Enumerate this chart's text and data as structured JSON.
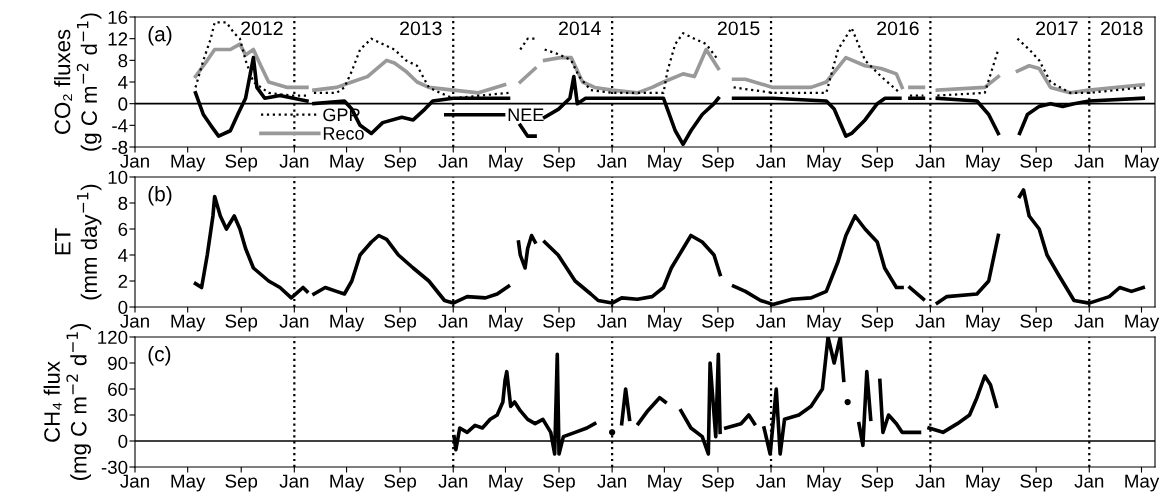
{
  "chart_data": [
    {
      "type": "line",
      "ylabel": "CO₂ fluxes\n(g C m$^{−2}$ d$^{−1}$)",
      "annotations": [
        "(a)",
        "2012",
        "2013",
        "2014",
        "2015",
        "2016",
        "2017",
        "2018"
      ],
      "xlim": [
        "2012-01-01",
        "2018-06-01"
      ],
      "xticks": [
        {
          "value": "2012-01",
          "label": "Jan"
        },
        {
          "value": "2012-05",
          "label": "May"
        },
        {
          "value": "2012-09",
          "label": "Sep"
        },
        {
          "value": "2013-01",
          "label": "Jan"
        },
        {
          "value": "2013-05",
          "label": "May"
        },
        {
          "value": "2013-09",
          "label": "Sep"
        },
        {
          "value": "2014-01",
          "label": "Jan"
        },
        {
          "value": "2014-05",
          "label": "May"
        },
        {
          "value": "2014-09",
          "label": "Sep"
        },
        {
          "value": "2015-01",
          "label": "Jan"
        },
        {
          "value": "2015-05",
          "label": "May"
        },
        {
          "value": "2015-09",
          "label": "Sep"
        },
        {
          "value": "2016-01",
          "label": "Jan"
        },
        {
          "value": "2016-05",
          "label": "May"
        },
        {
          "value": "2016-09",
          "label": "Sep"
        },
        {
          "value": "2017-01",
          "label": "Jan"
        },
        {
          "value": "2017-05",
          "label": "May"
        },
        {
          "value": "2017-09",
          "label": "Sep"
        },
        {
          "value": "2018-01",
          "label": "Jan"
        },
        {
          "value": "2018-05",
          "label": "May"
        }
      ],
      "ylim": [
        -8,
        16
      ],
      "yticks": [
        -8,
        -4,
        0,
        4,
        8,
        12,
        16
      ],
      "grid": false,
      "legend": "bottom left",
      "ref_lines": [
        {
          "axis": "x",
          "value": "2013-01-01",
          "color": "#000000",
          "line_style": "dotted"
        },
        {
          "axis": "x",
          "value": "2014-01-01",
          "color": "#000000",
          "line_style": "dotted"
        },
        {
          "axis": "x",
          "value": "2015-01-01",
          "color": "#000000",
          "line_style": "dotted"
        },
        {
          "axis": "x",
          "value": "2016-01-01",
          "color": "#000000",
          "line_style": "dotted"
        },
        {
          "axis": "x",
          "value": "2017-01-01",
          "color": "#000000",
          "line_style": "dotted"
        },
        {
          "axis": "x",
          "value": "2018-01-01",
          "color": "#000000",
          "line_style": "dotted"
        },
        {
          "axis": "y",
          "value": 0,
          "color": "#000000",
          "line_style": "solid"
        }
      ],
      "series": [
        {
          "name": "GPP",
          "color": "#000000",
          "line_style": "dotted",
          "x": [
            "2012-05-19",
            "2012-06-06",
            "2012-06-23",
            "2012-07-02",
            "2012-07-29",
            "2012-08-16",
            "2012-08-29",
            "2012-09-11",
            "2012-09-29",
            "2012-11-03",
            "2012-12-25",
            "2013-01-30",
            "2013-02-07",
            "2013-02-15",
            "2013-04-08",
            "2013-04-26",
            "2013-05-13",
            "2013-06-01",
            "2013-06-27",
            "2013-07-23",
            "2013-08-19",
            "2013-09-14",
            "2013-10-10",
            "2013-11-06",
            "2013-12-02",
            "2014-01-01",
            "2014-05-08",
            "2014-05-20",
            "2014-06-04",
            "2014-06-21",
            "2014-07-08",
            "2014-07-18",
            "2014-07-30",
            "2014-09-04",
            "2014-09-29",
            "2014-10-17",
            "2014-11-13",
            "2015-01-01",
            "2015-04-29",
            "2015-05-08",
            "2015-05-26",
            "2015-06-13",
            "2015-07-09",
            "2015-08-05",
            "2015-09-02",
            "2015-09-20",
            "2015-10-07",
            "2016-01-05",
            "2016-05-07",
            "2016-06-03",
            "2016-07-04",
            "2016-08-04",
            "2016-09-10",
            "2016-10-23",
            "2016-11-05",
            "2016-11-15",
            "2016-12-16",
            "2017-01-01",
            "2017-01-17",
            "2017-05-06",
            "2017-06-06",
            "2017-06-25",
            "2017-07-20",
            "2017-08-16",
            "2017-09-08",
            "2017-10-04",
            "2017-11-18",
            "2018-01-01",
            "2018-05-05"
          ],
          "values": [
            3,
            8,
            12,
            15,
            15,
            13,
            12,
            8,
            4,
            2,
            1.5,
            1.5,
            null,
            2,
            2,
            3,
            6,
            10,
            12,
            11,
            10,
            8,
            7,
            3,
            2,
            1,
            2,
            null,
            10,
            12,
            12,
            null,
            10,
            9,
            8,
            5,
            2.5,
            2,
            2,
            6,
            11,
            13,
            12,
            11,
            8,
            null,
            3,
            2,
            2,
            10,
            14,
            8,
            5,
            2,
            null,
            1.5,
            1.5,
            null,
            1.5,
            2,
            10,
            null,
            12,
            10,
            8,
            4,
            2,
            2,
            3
          ]
        },
        {
          "name": "Reco",
          "color": "#999999",
          "line_style": "solid",
          "x": [
            "2012-05-19",
            "2012-06-15",
            "2012-07-02",
            "2012-08-07",
            "2012-08-29",
            "2012-09-11",
            "2012-09-29",
            "2012-10-16",
            "2012-11-03",
            "2012-12-16",
            "2013-01-30",
            "2013-02-07",
            "2013-02-15",
            "2013-04-08",
            "2013-05-13",
            "2013-06-18",
            "2013-08-01",
            "2013-08-19",
            "2013-09-14",
            "2013-10-10",
            "2013-11-06",
            "2014-01-01",
            "2014-02-28",
            "2014-04-29",
            "2014-05-20",
            "2014-06-04",
            "2014-07-08",
            "2014-07-18",
            "2014-07-30",
            "2014-09-04",
            "2014-09-29",
            "2014-10-25",
            "2014-11-22",
            "2015-01-01",
            "2015-02-28",
            "2015-04-03",
            "2015-04-29",
            "2015-06-13",
            "2015-07-09",
            "2015-08-05",
            "2015-09-02",
            "2015-09-20",
            "2015-10-07",
            "2015-11-03",
            "2016-01-05",
            "2016-04-02",
            "2016-05-07",
            "2016-06-21",
            "2016-08-04",
            "2016-09-10",
            "2016-10-15",
            "2016-10-28",
            "2016-11-05",
            "2016-11-15",
            "2016-12-16",
            "2017-01-01",
            "2017-01-17",
            "2017-05-06",
            "2017-06-06",
            "2017-06-25",
            "2017-07-20",
            "2017-08-16",
            "2017-09-08",
            "2017-10-04",
            "2017-11-18",
            "2018-01-01",
            "2018-05-05"
          ],
          "values": [
            5,
            8,
            10,
            10,
            11,
            9,
            10,
            7,
            4,
            3,
            3,
            null,
            2.5,
            3,
            4,
            5,
            8,
            7.5,
            6,
            4,
            3,
            2.5,
            2,
            3.5,
            null,
            4,
            6.5,
            null,
            8,
            8.5,
            8.5,
            4,
            3,
            2.5,
            2,
            3,
            4,
            5.5,
            5,
            10,
            6.5,
            null,
            4.5,
            4.5,
            3,
            3,
            4,
            8.5,
            7,
            6.5,
            5.5,
            3,
            null,
            3,
            3,
            null,
            2.5,
            3,
            5,
            null,
            6,
            7,
            6.5,
            3,
            2,
            2.5,
            3.5
          ]
        },
        {
          "name": "NEE",
          "color": "#000000",
          "line_style": "solid",
          "x": [
            "2012-05-19",
            "2012-06-06",
            "2012-06-23",
            "2012-07-11",
            "2012-08-07",
            "2012-08-24",
            "2012-09-11",
            "2012-09-29",
            "2012-10-07",
            "2012-10-25",
            "2012-11-29",
            "2013-01-30",
            "2013-02-07",
            "2013-02-15",
            "2013-04-26",
            "2013-05-13",
            "2013-06-01",
            "2013-06-27",
            "2013-07-23",
            "2013-09-05",
            "2013-10-01",
            "2013-10-28",
            "2013-11-15",
            "2014-01-01",
            "2014-05-08",
            "2014-05-20",
            "2014-06-04",
            "2014-06-21",
            "2014-07-08",
            "2014-07-18",
            "2014-07-30",
            "2014-08-31",
            "2014-09-26",
            "2014-10-05",
            "2014-10-13",
            "2014-11-01",
            "2015-01-01",
            "2015-04-29",
            "2015-05-08",
            "2015-05-26",
            "2015-06-13",
            "2015-07-01",
            "2015-07-27",
            "2015-08-23",
            "2015-09-02",
            "2015-09-20",
            "2015-10-07",
            "2016-01-05",
            "2016-05-07",
            "2016-05-25",
            "2016-06-21",
            "2016-07-04",
            "2016-08-04",
            "2016-09-01",
            "2016-09-19",
            "2016-10-23",
            "2016-11-05",
            "2016-11-15",
            "2016-12-16",
            "2017-01-01",
            "2017-01-17",
            "2017-04-18",
            "2017-05-15",
            "2017-06-06",
            "2017-06-25",
            "2017-07-25",
            "2017-08-12",
            "2017-09-08",
            "2017-10-04",
            "2017-11-01",
            "2017-11-27",
            "2018-01-01",
            "2018-05-05"
          ],
          "values": [
            2,
            -2,
            -4,
            -6,
            -5,
            -2,
            1,
            8.5,
            3,
            1,
            1.5,
            0.5,
            null,
            0,
            0.5,
            -1,
            -4,
            -5.5,
            -3.5,
            -2.5,
            -3,
            -1,
            0.5,
            1,
            1,
            null,
            -4,
            -6,
            -6,
            null,
            -2.5,
            -1,
            1,
            5,
            0,
            1,
            1,
            1,
            -1,
            -5,
            -7.5,
            -5,
            -2,
            0,
            1,
            null,
            1,
            1,
            0.5,
            -1,
            -6,
            -5.5,
            -3,
            0,
            1,
            1,
            null,
            1,
            1,
            null,
            1,
            0.5,
            -2,
            -5.5,
            null,
            -5.5,
            -2,
            -0.5,
            0,
            -0.5,
            0,
            0.5,
            1
          ]
        }
      ]
    },
    {
      "type": "line",
      "ylabel": "ET\n(mm day$^{−1}$)",
      "annotations": [
        "(b)"
      ],
      "xlim": [
        "2012-01-01",
        "2018-06-01"
      ],
      "xticks": [
        {
          "value": "2012-01",
          "label": "Jan"
        },
        {
          "value": "2012-05",
          "label": "May"
        },
        {
          "value": "2012-09",
          "label": "Sep"
        },
        {
          "value": "2013-01",
          "label": "Jan"
        },
        {
          "value": "2013-05",
          "label": "May"
        },
        {
          "value": "2013-09",
          "label": "Sep"
        },
        {
          "value": "2014-01",
          "label": "Jan"
        },
        {
          "value": "2014-05",
          "label": "May"
        },
        {
          "value": "2014-09",
          "label": "Sep"
        },
        {
          "value": "2015-01",
          "label": "Jan"
        },
        {
          "value": "2015-05",
          "label": "May"
        },
        {
          "value": "2015-09",
          "label": "Sep"
        },
        {
          "value": "2016-01",
          "label": "Jan"
        },
        {
          "value": "2016-05",
          "label": "May"
        },
        {
          "value": "2016-09",
          "label": "Sep"
        },
        {
          "value": "2017-01",
          "label": "Jan"
        },
        {
          "value": "2017-05",
          "label": "May"
        },
        {
          "value": "2017-09",
          "label": "Sep"
        },
        {
          "value": "2018-01",
          "label": "Jan"
        },
        {
          "value": "2018-05",
          "label": "May"
        }
      ],
      "ylim": [
        0,
        10
      ],
      "yticks": [
        0,
        2,
        4,
        6,
        8,
        10
      ],
      "grid": false,
      "ref_lines": [
        {
          "axis": "x",
          "value": "2013-01-01",
          "color": "#000000",
          "line_style": "dotted"
        },
        {
          "axis": "x",
          "value": "2014-01-01",
          "color": "#000000",
          "line_style": "dotted"
        },
        {
          "axis": "x",
          "value": "2015-01-01",
          "color": "#000000",
          "line_style": "dotted"
        },
        {
          "axis": "x",
          "value": "2016-01-01",
          "color": "#000000",
          "line_style": "dotted"
        },
        {
          "axis": "x",
          "value": "2017-01-01",
          "color": "#000000",
          "line_style": "dotted"
        },
        {
          "axis": "x",
          "value": "2018-01-01",
          "color": "#000000",
          "line_style": "dotted"
        }
      ],
      "series": [
        {
          "color": "#000000",
          "line_style": "solid",
          "x": [
            "2012-05-19",
            "2012-06-02",
            "2012-06-15",
            "2012-06-28",
            "2012-07-02",
            "2012-07-15",
            "2012-07-29",
            "2012-08-16",
            "2012-08-29",
            "2012-09-11",
            "2012-09-29",
            "2012-11-03",
            "2012-11-29",
            "2012-12-25",
            "2013-01-21",
            "2013-01-30",
            "2013-02-07",
            "2013-02-15",
            "2013-03-13",
            "2013-04-08",
            "2013-04-26",
            "2013-05-13",
            "2013-06-01",
            "2013-06-27",
            "2013-07-14",
            "2013-08-01",
            "2013-08-28",
            "2013-10-01",
            "2013-11-06",
            "2013-12-12",
            "2014-01-01",
            "2014-02-02",
            "2014-03-16",
            "2014-04-12",
            "2014-05-08",
            "2014-05-20",
            "2014-05-31",
            "2014-06-04",
            "2014-06-15",
            "2014-06-21",
            "2014-06-30",
            "2014-07-08",
            "2014-07-18",
            "2014-07-30",
            "2014-08-30",
            "2014-10-08",
            "2014-11-13",
            "2014-11-30",
            "2015-01-01",
            "2015-01-23",
            "2015-02-28",
            "2015-04-03",
            "2015-04-29",
            "2015-05-17",
            "2015-06-13",
            "2015-07-01",
            "2015-07-27",
            "2015-08-23",
            "2015-09-06",
            "2015-09-20",
            "2015-10-07",
            "2015-11-03",
            "2015-12-08",
            "2016-01-05",
            "2016-02-18",
            "2016-04-02",
            "2016-05-07",
            "2016-06-03",
            "2016-06-21",
            "2016-07-12",
            "2016-08-04",
            "2016-09-01",
            "2016-09-18",
            "2016-10-15",
            "2016-10-28",
            "2016-11-05",
            "2016-11-15",
            "2016-12-16",
            "2017-01-01",
            "2017-01-17",
            "2017-02-08",
            "2017-04-18",
            "2017-05-15",
            "2017-06-06",
            "2017-06-25",
            "2017-07-25",
            "2017-08-03",
            "2017-08-16",
            "2017-09-08",
            "2017-09-26",
            "2017-10-22",
            "2017-11-27",
            "2018-01-01",
            "2018-02-16",
            "2018-03-12",
            "2018-04-08",
            "2018-05-05"
          ],
          "values": [
            1.8,
            1.5,
            4,
            7,
            8.5,
            7,
            6,
            7,
            6,
            4.5,
            3,
            2,
            1.5,
            0.7,
            1.5,
            1.2,
            null,
            1,
            1.5,
            1.2,
            1,
            2,
            4,
            5,
            5.5,
            5.2,
            4,
            3,
            2,
            0.5,
            0.3,
            0.8,
            0.7,
            1,
            1.6,
            null,
            5,
            4,
            3,
            4.5,
            5.5,
            5,
            null,
            5,
            4,
            2,
            1,
            0.5,
            0.3,
            0.7,
            0.6,
            0.8,
            1.5,
            3,
            4.5,
            5.5,
            5,
            4,
            2.5,
            null,
            1.6,
            1.2,
            0.5,
            0.2,
            0.6,
            0.7,
            1.2,
            3.5,
            5.5,
            7,
            6,
            5,
            3,
            1.5,
            1.5,
            null,
            1.5,
            0.6,
            null,
            0.3,
            0.8,
            1,
            2,
            5.5,
            null,
            8.5,
            9,
            7,
            6,
            4,
            2.5,
            0.5,
            0.3,
            0.8,
            1.5,
            1.2,
            1.5
          ]
        }
      ]
    },
    {
      "type": "line",
      "ylabel": "CH₄ flux\n(mg C m$^{−2}$ d$^{−1}$)",
      "annotations": [
        "(c)"
      ],
      "xlim": [
        "2012-01-01",
        "2018-06-01"
      ],
      "xticks": [
        {
          "value": "2012-01",
          "label": "Jan"
        },
        {
          "value": "2012-05",
          "label": "May"
        },
        {
          "value": "2012-09",
          "label": "Sep"
        },
        {
          "value": "2013-01",
          "label": "Jan"
        },
        {
          "value": "2013-05",
          "label": "May"
        },
        {
          "value": "2013-09",
          "label": "Sep"
        },
        {
          "value": "2014-01",
          "label": "Jan"
        },
        {
          "value": "2014-05",
          "label": "May"
        },
        {
          "value": "2014-09",
          "label": "Sep"
        },
        {
          "value": "2015-01",
          "label": "Jan"
        },
        {
          "value": "2015-05",
          "label": "May"
        },
        {
          "value": "2015-09",
          "label": "Sep"
        },
        {
          "value": "2016-01",
          "label": "Jan"
        },
        {
          "value": "2016-05",
          "label": "May"
        },
        {
          "value": "2016-09",
          "label": "Sep"
        },
        {
          "value": "2017-01",
          "label": "Jan"
        },
        {
          "value": "2017-05",
          "label": "May"
        },
        {
          "value": "2017-09",
          "label": "Sep"
        },
        {
          "value": "2018-01",
          "label": "Jan"
        },
        {
          "value": "2018-05",
          "label": "May"
        }
      ],
      "ylim": [
        -30,
        120
      ],
      "yticks": [
        -30,
        0,
        30,
        60,
        90,
        120
      ],
      "grid": false,
      "ref_lines": [
        {
          "axis": "x",
          "value": "2013-01-01",
          "color": "#000000",
          "line_style": "dotted"
        },
        {
          "axis": "x",
          "value": "2014-01-01",
          "color": "#000000",
          "line_style": "dotted"
        },
        {
          "axis": "x",
          "value": "2015-01-01",
          "color": "#000000",
          "line_style": "dotted"
        },
        {
          "axis": "x",
          "value": "2016-01-01",
          "color": "#000000",
          "line_style": "dotted"
        },
        {
          "axis": "x",
          "value": "2017-01-01",
          "color": "#000000",
          "line_style": "dotted"
        },
        {
          "axis": "x",
          "value": "2018-01-01",
          "color": "#000000",
          "line_style": "dotted"
        },
        {
          "axis": "y",
          "value": 0,
          "color": "#000000",
          "line_style": "solid"
        }
      ],
      "series": [
        {
          "color": "#000000",
          "line_style": "solid",
          "x": [
            "2014-01-03",
            "2014-01-07",
            "2014-01-16",
            "2014-02-02",
            "2014-02-20",
            "2014-03-09",
            "2014-03-27",
            "2014-04-12",
            "2014-04-25",
            "2014-04-30",
            "2014-05-04",
            "2014-05-13",
            "2014-05-22",
            "2014-06-04",
            "2014-06-21",
            "2014-07-08",
            "2014-07-26",
            "2014-08-13",
            "2014-08-22",
            "2014-08-28",
            "2014-09-01",
            "2014-09-11",
            "2014-10-08",
            "2014-11-04",
            "2014-11-22",
            "2014-12-15",
            "2015-01-01",
            "2015-01-15",
            "2015-01-23",
            "2015-02-01",
            "2015-02-10",
            "2015-02-20",
            "2015-03-02",
            "2015-03-24",
            "2015-04-20",
            "2015-05-03",
            "2015-05-20",
            "2015-06-08",
            "2015-07-01",
            "2015-07-27",
            "2015-08-10",
            "2015-08-14",
            "2015-08-27",
            "2015-09-02",
            "2015-09-06",
            "2015-09-12",
            "2015-09-19",
            "2015-10-24",
            "2015-11-11",
            "2015-11-24",
            "2015-12-05",
            "2015-12-16",
            "2015-12-30",
            "2016-01-13",
            "2016-01-22",
            "2016-02-01",
            "2016-03-05",
            "2016-04-02",
            "2016-04-28",
            "2016-05-11",
            "2016-05-25",
            "2016-06-08",
            "2016-06-16",
            "2016-06-20",
            "2016-06-25",
            "2016-07-10",
            "2016-07-21",
            "2016-07-30",
            "2016-08-08",
            "2016-08-17",
            "2016-08-28",
            "2016-09-07",
            "2016-09-14",
            "2016-09-27",
            "2016-10-15",
            "2016-10-28",
            "2016-12-07",
            "2016-12-18",
            "2016-12-29",
            "2017-01-30",
            "2017-03-04",
            "2017-04-01",
            "2017-04-18",
            "2017-05-06",
            "2017-05-19",
            "2017-06-02"
          ],
          "values": [
            5,
            -10,
            15,
            10,
            18,
            15,
            25,
            30,
            45,
            70,
            80,
            40,
            45,
            35,
            25,
            20,
            25,
            10,
            -15,
            100,
            -15,
            5,
            10,
            15,
            20,
            null,
            10,
            null,
            20,
            60,
            25,
            null,
            20,
            35,
            50,
            45,
            null,
            35,
            15,
            5,
            -15,
            90,
            5,
            100,
            10,
            null,
            15,
            20,
            30,
            20,
            null,
            15,
            -15,
            60,
            -15,
            25,
            30,
            40,
            60,
            120,
            90,
            120,
            70,
            null,
            45,
            null,
            20,
            -5,
            80,
            25,
            null,
            70,
            10,
            30,
            20,
            10,
            10,
            null,
            15,
            10,
            20,
            30,
            50,
            75,
            65,
            40
          ]
        }
      ]
    }
  ]
}
